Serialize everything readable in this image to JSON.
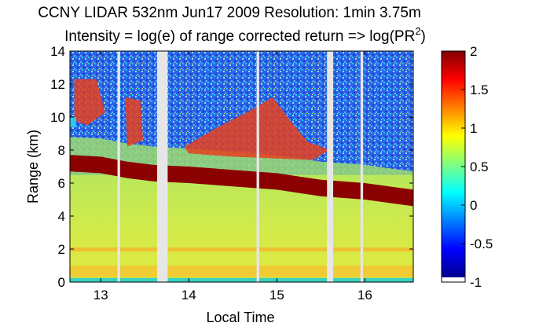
{
  "chart_data": {
    "type": "heatmap",
    "title": "CCNY LIDAR 532nm Jun17 2009 Resolution: 1min 3.75m",
    "subtitle_prefix": "Intensity = log(e) of range corrected return => log(PR",
    "subtitle_sup": "2",
    "subtitle_suffix": ")",
    "xlabel": "Local Time",
    "ylabel": "Range (km)",
    "xlim": [
      12.65,
      16.55
    ],
    "ylim": [
      0,
      14
    ],
    "xticks": [
      13,
      14,
      15,
      16
    ],
    "xtick_labels": [
      "13",
      "14",
      "15",
      "16"
    ],
    "yticks": [
      0,
      2,
      4,
      6,
      8,
      10,
      12,
      14
    ],
    "ytick_labels": [
      "0",
      "2",
      "4",
      "6",
      "8",
      "10",
      "12",
      "14"
    ],
    "colorbar": {
      "ticks": [
        2,
        1.5,
        1,
        0.5,
        0,
        -0.5,
        -1
      ],
      "tick_labels": [
        "2",
        "1.5",
        "1",
        "0.5",
        "0",
        "-0.5",
        "-1"
      ],
      "range": [
        -1,
        2
      ],
      "colormap": "jet"
    },
    "data_gaps": [
      {
        "start": 13.19,
        "end": 13.22
      },
      {
        "start": 13.64,
        "end": 13.76
      },
      {
        "start": 14.77,
        "end": 14.8
      },
      {
        "start": 15.57,
        "end": 15.64
      },
      {
        "start": 15.95,
        "end": 15.98
      }
    ],
    "cloud_layer_top_km": [
      [
        12.65,
        7.7
      ],
      [
        13.0,
        7.6
      ],
      [
        13.3,
        7.3
      ],
      [
        13.6,
        7.1
      ],
      [
        14.0,
        7.0
      ],
      [
        14.5,
        6.8
      ],
      [
        15.0,
        6.6
      ],
      [
        15.5,
        6.2
      ],
      [
        16.0,
        6.0
      ],
      [
        16.55,
        5.6
      ]
    ],
    "boundary_layer_top_km": 6.5,
    "colors": {
      "gap": "#e6e6e6",
      "noise": "#2050e0",
      "cloud": "#8b0000",
      "boundary_layer": "#d9e84a"
    }
  }
}
